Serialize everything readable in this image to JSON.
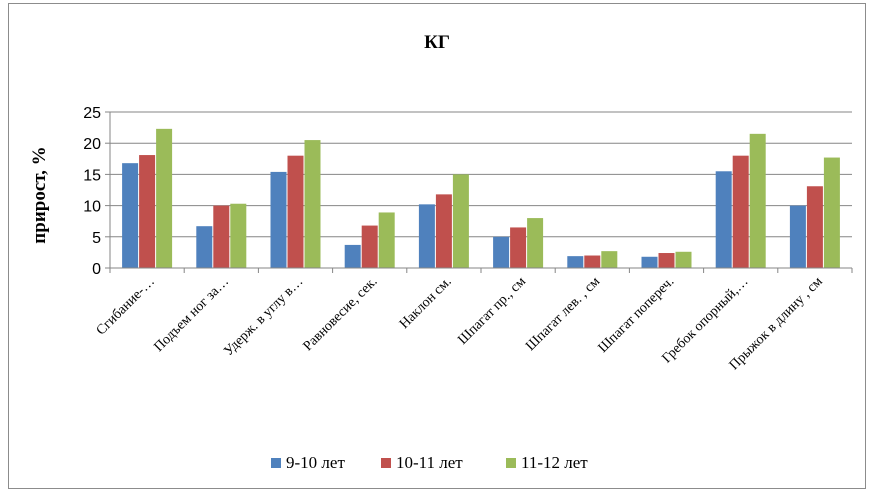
{
  "chart_data": {
    "type": "bar",
    "title": "КГ",
    "xlabel": "",
    "ylabel": "прирост, %",
    "ylim": [
      0,
      25
    ],
    "yticks": [
      0,
      5,
      10,
      15,
      20,
      25
    ],
    "grid": "horizontal",
    "legend_position": "bottom",
    "categories": [
      "Сгибание-…",
      "Подъем  ног за…",
      "Удерж. в углу в…",
      "Равновесие, сек.",
      "Наклон см.",
      "Шпагат пр., см",
      "Шпагат лев. , см",
      "Шпагат попереч.",
      "Гребок опорный,…",
      "Прыжок  в длину , см"
    ],
    "series": [
      {
        "name": "9-10 лет",
        "color": "#4F81BD",
        "values": [
          16.8,
          6.7,
          15.4,
          3.7,
          10.2,
          5.0,
          1.9,
          1.8,
          15.5,
          10.0
        ]
      },
      {
        "name": "10-11 лет",
        "color": "#C0504D",
        "values": [
          18.1,
          10.0,
          18.0,
          6.8,
          11.8,
          6.5,
          2.0,
          2.4,
          18.0,
          13.1
        ]
      },
      {
        "name": "11-12 лет",
        "color": "#9BBB59",
        "values": [
          22.3,
          10.3,
          20.5,
          8.9,
          15.0,
          8.0,
          2.7,
          2.6,
          21.5,
          17.7
        ]
      }
    ]
  }
}
